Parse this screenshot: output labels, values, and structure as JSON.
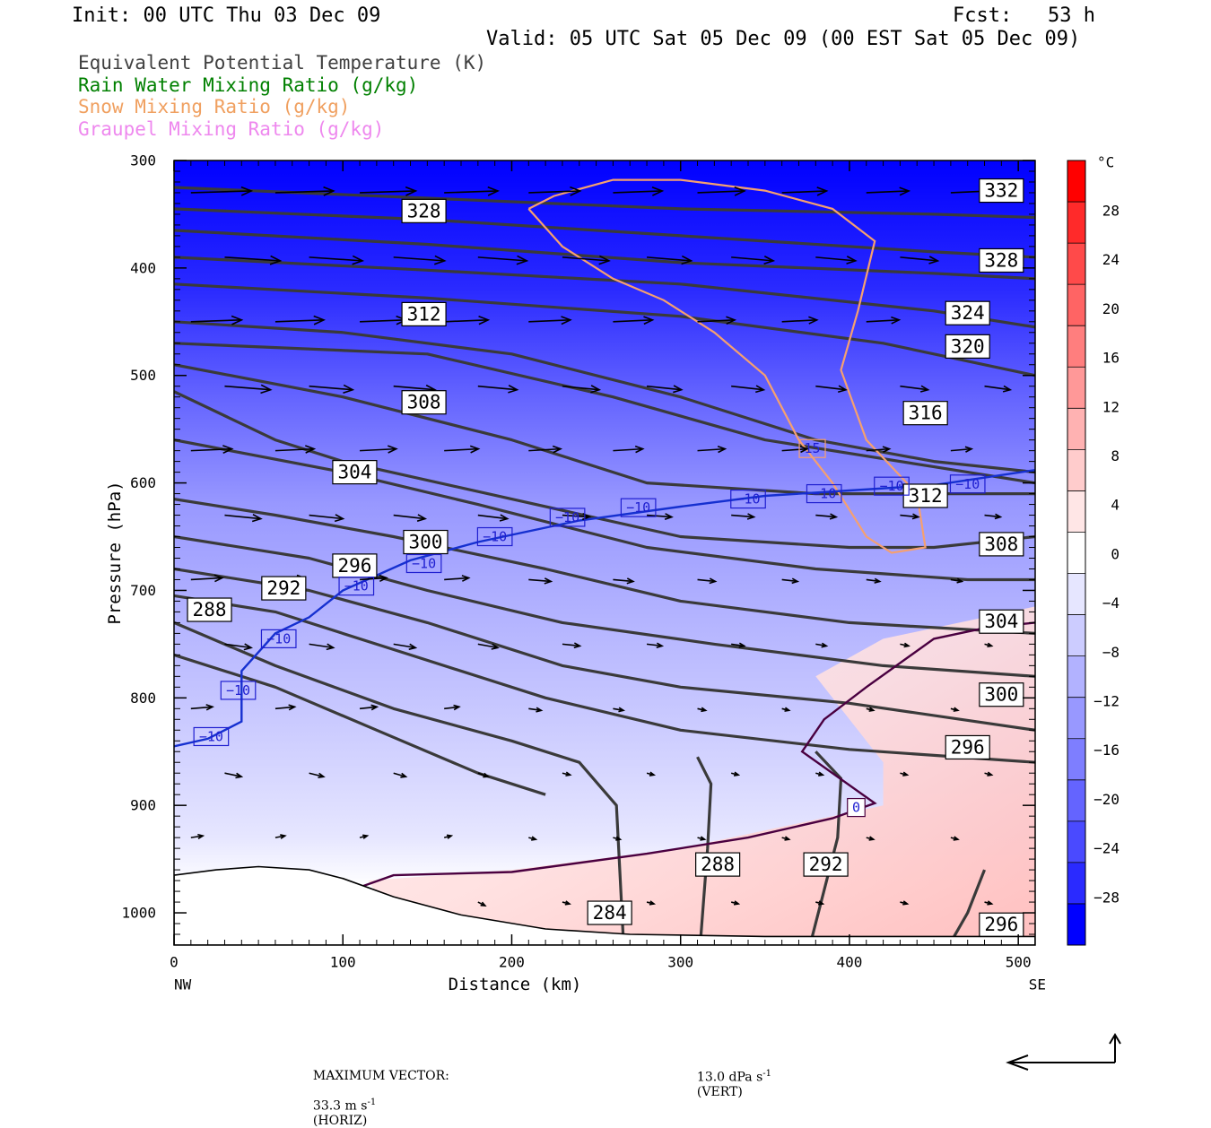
{
  "header": {
    "init": "Init: 00 UTC Thu 03 Dec 09",
    "fcst": "Fcst:   53 h",
    "valid": "Valid: 05 UTC Sat 05 Dec 09 (00 EST Sat 05 Dec 09)"
  },
  "legend": [
    {
      "label": "Equivalent Potential Temperature (K)",
      "color": "#404040"
    },
    {
      "label": "Rain Water Mixing Ratio (g/kg)",
      "color": "#008000"
    },
    {
      "label": "Snow Mixing Ratio (g/kg)",
      "color": "#f0a060"
    },
    {
      "label": "Graupel Mixing Ratio (g/kg)",
      "color": "#ee88ee"
    }
  ],
  "footer": {
    "max_vector_label": "MAXIMUM VECTOR:",
    "horiz_value": "33.3 m s",
    "horiz_unit": "(HORIZ)",
    "vert_value": "13.0 dPa s",
    "vert_unit": "(VERT)",
    "exponent": "-1"
  },
  "colorbar": {
    "unit": "°C",
    "labels": [
      "28",
      "24",
      "20",
      "16",
      "12",
      "8",
      "4",
      "0",
      "−4",
      "−8",
      "−12",
      "−16",
      "−20",
      "−24",
      "−28"
    ],
    "label_values": [
      28,
      24,
      20,
      16,
      12,
      8,
      4,
      0,
      -4,
      -8,
      -12,
      -16,
      -20,
      -24,
      -28
    ],
    "colors": [
      "#ff0000",
      "#ff2a2a",
      "#ff4a4a",
      "#ff6464",
      "#ff7e7e",
      "#ff9898",
      "#ffb2b2",
      "#ffcccc",
      "#ffe6e6",
      "#ffffff",
      "#e6e6ff",
      "#ccccff",
      "#b2b2ff",
      "#9898ff",
      "#7e7eff",
      "#6464ff",
      "#4a4aff",
      "#2a2aff",
      "#0000ff"
    ]
  },
  "chart_data": {
    "type": "cross-section",
    "xlabel": "Distance (km)",
    "ylabel": "Pressure (hPa)",
    "x_ticks": [
      0,
      100,
      200,
      300,
      400,
      500
    ],
    "x_tick_labels": [
      "0",
      "100",
      "200",
      "300",
      "400",
      "500"
    ],
    "x_end_labels": {
      "left": "NW",
      "right": "SE"
    },
    "xlim": [
      0,
      510
    ],
    "y_ticks": [
      300,
      400,
      500,
      600,
      700,
      800,
      900,
      1000
    ],
    "y_tick_labels": [
      "300",
      "400",
      "500",
      "600",
      "700",
      "800",
      "900",
      "1000"
    ],
    "ylim": [
      1030,
      300
    ],
    "y_scale": "linear",
    "shading": {
      "field": "Temperature (°C)",
      "stops": [
        {
          "p": 300,
          "c": "#0000ff"
        },
        {
          "p": 420,
          "c": "#2a2aff"
        },
        {
          "p": 520,
          "c": "#6464ff"
        },
        {
          "p": 620,
          "c": "#9898ff"
        },
        {
          "p": 720,
          "c": "#b2b2ff"
        },
        {
          "p": 830,
          "c": "#ccccff"
        },
        {
          "p": 930,
          "c": "#e6e6ff"
        },
        {
          "p": 975,
          "c": "#ffffff"
        }
      ]
    },
    "warm_region": [
      [
        115,
        970
      ],
      [
        200,
        960
      ],
      [
        300,
        940
      ],
      [
        420,
        900
      ],
      [
        420,
        860
      ],
      [
        380,
        780
      ],
      [
        420,
        745
      ],
      [
        510,
        715
      ],
      [
        510,
        1030
      ],
      [
        140,
        1030
      ]
    ],
    "terrain": [
      [
        0,
        1030
      ],
      [
        0,
        965
      ],
      [
        25,
        960
      ],
      [
        50,
        957
      ],
      [
        80,
        960
      ],
      [
        100,
        968
      ],
      [
        130,
        985
      ],
      [
        170,
        1002
      ],
      [
        220,
        1015
      ],
      [
        270,
        1020
      ],
      [
        350,
        1022
      ],
      [
        430,
        1022
      ],
      [
        510,
        1022
      ],
      [
        510,
        1030
      ]
    ],
    "theta_e_contours": [
      {
        "label": "332",
        "label_at": [
          490,
          328
        ],
        "points": [
          [
            0,
            325
          ],
          [
            150,
            335
          ],
          [
            300,
            345
          ],
          [
            450,
            350
          ],
          [
            510,
            353
          ]
        ]
      },
      {
        "label": "328",
        "label_at": [
          148,
          347
        ],
        "points": [
          [
            0,
            345
          ],
          [
            150,
            355
          ],
          [
            300,
            370
          ],
          [
            450,
            385
          ],
          [
            510,
            390
          ]
        ]
      },
      {
        "label": "328",
        "label_at": [
          490,
          393
        ],
        "points": [
          [
            0,
            365
          ],
          [
            150,
            378
          ],
          [
            300,
            395
          ],
          [
            450,
            405
          ],
          [
            510,
            410
          ]
        ]
      },
      {
        "label": "324",
        "label_at": [
          470,
          442
        ],
        "points": [
          [
            0,
            390
          ],
          [
            150,
            402
          ],
          [
            300,
            415
          ],
          [
            450,
            440
          ],
          [
            510,
            455
          ]
        ]
      },
      {
        "label": "320",
        "label_at": [
          470,
          473
        ],
        "points": [
          [
            0,
            415
          ],
          [
            150,
            428
          ],
          [
            300,
            445
          ],
          [
            420,
            470
          ],
          [
            510,
            500
          ]
        ]
      },
      {
        "label": "312",
        "label_at": [
          148,
          443
        ],
        "points": [
          [
            0,
            450
          ],
          [
            100,
            460
          ],
          [
            200,
            480
          ],
          [
            300,
            520
          ],
          [
            380,
            560
          ],
          [
            450,
            580
          ],
          [
            510,
            590
          ]
        ]
      },
      {
        "label": "316",
        "label_at": [
          445,
          535
        ],
        "points": [
          [
            0,
            470
          ],
          [
            150,
            480
          ],
          [
            260,
            520
          ],
          [
            350,
            560
          ],
          [
            450,
            585
          ],
          [
            510,
            600
          ]
        ]
      },
      {
        "label": "312",
        "label_at": [
          445,
          612
        ],
        "points": [
          [
            0,
            490
          ],
          [
            100,
            520
          ],
          [
            200,
            560
          ],
          [
            280,
            600
          ],
          [
            380,
            610
          ],
          [
            450,
            610
          ],
          [
            510,
            610
          ]
        ]
      },
      {
        "label": "308",
        "label_at": [
          148,
          525
        ],
        "points": [
          [
            0,
            515
          ],
          [
            60,
            560
          ],
          [
            100,
            580
          ],
          [
            200,
            615
          ],
          [
            300,
            650
          ],
          [
            400,
            660
          ],
          [
            450,
            660
          ],
          [
            510,
            650
          ]
        ]
      },
      {
        "label": "308",
        "label_at": [
          490,
          657
        ],
        "points": [
          [
            0,
            560
          ],
          [
            100,
            590
          ],
          [
            180,
            620
          ],
          [
            280,
            660
          ],
          [
            380,
            680
          ],
          [
            470,
            690
          ],
          [
            510,
            690
          ]
        ]
      },
      {
        "label": "304",
        "label_at": [
          107,
          590
        ],
        "points": [
          [
            0,
            615
          ],
          [
            60,
            630
          ],
          [
            130,
            650
          ],
          [
            220,
            680
          ],
          [
            300,
            710
          ],
          [
            400,
            730
          ],
          [
            510,
            740
          ]
        ]
      },
      {
        "label": "304",
        "label_at": [
          490,
          729
        ],
        "points": [
          [
            0,
            650
          ],
          [
            80,
            670
          ],
          [
            150,
            700
          ],
          [
            230,
            730
          ],
          [
            320,
            750
          ],
          [
            420,
            770
          ],
          [
            510,
            780
          ]
        ]
      },
      {
        "label": "300",
        "label_at": [
          149,
          655
        ],
        "points": [
          [
            0,
            680
          ],
          [
            80,
            700
          ],
          [
            150,
            730
          ],
          [
            230,
            770
          ],
          [
            300,
            790
          ],
          [
            400,
            805
          ],
          [
            510,
            830
          ]
        ]
      },
      {
        "label": "300",
        "label_at": [
          490,
          797
        ],
        "points": [
          [
            0,
            705
          ],
          [
            60,
            720
          ],
          [
            140,
            760
          ],
          [
            220,
            800
          ],
          [
            300,
            830
          ],
          [
            400,
            848
          ],
          [
            510,
            860
          ]
        ]
      },
      {
        "label": "296",
        "label_at": [
          107,
          677
        ],
        "points": [
          [
            0,
            730
          ],
          [
            60,
            770
          ],
          [
            130,
            810
          ],
          [
            200,
            840
          ],
          [
            240,
            860
          ],
          [
            262,
            900
          ],
          [
            264,
            960
          ],
          [
            266,
            1022
          ]
        ]
      },
      {
        "label": "296",
        "label_at": [
          470,
          846
        ],
        "points": [
          [
            0,
            760
          ],
          [
            60,
            790
          ],
          [
            120,
            830
          ],
          [
            180,
            870
          ],
          [
            220,
            890
          ]
        ]
      },
      {
        "label": "292",
        "label_at": [
          65,
          698
        ],
        "points": [
          [
            310,
            855
          ],
          [
            318,
            880
          ],
          [
            316,
            940
          ],
          [
            312,
            1022
          ]
        ]
      },
      {
        "label": "288",
        "label_at": [
          21,
          718
        ],
        "points": [
          [
            380,
            850
          ],
          [
            395,
            875
          ],
          [
            393,
            930
          ],
          [
            378,
            1022
          ]
        ]
      },
      {
        "label": "296",
        "label_at": [
          490,
          1011
        ],
        "points": [
          [
            480,
            960
          ],
          [
            470,
            1000
          ],
          [
            462,
            1022
          ]
        ]
      }
    ],
    "theta_e_low_labels": [
      {
        "label": "284",
        "label_at": [
          258,
          1000
        ]
      },
      {
        "label": "288",
        "label_at": [
          322,
          955
        ]
      },
      {
        "label": "292",
        "label_at": [
          386,
          955
        ]
      }
    ],
    "temp_minus10": {
      "points": [
        [
          0,
          845
        ],
        [
          20,
          838
        ],
        [
          40,
          822
        ],
        [
          40,
          775
        ],
        [
          60,
          740
        ],
        [
          80,
          725
        ],
        [
          100,
          700
        ],
        [
          140,
          672
        ],
        [
          180,
          655
        ],
        [
          240,
          635
        ],
        [
          300,
          622
        ],
        [
          350,
          612
        ],
        [
          400,
          607
        ],
        [
          450,
          602
        ],
        [
          510,
          588
        ]
      ],
      "labels": [
        {
          "label": "−10",
          "label_at": [
            22,
            836
          ]
        },
        {
          "label": "−10",
          "label_at": [
            38,
            793
          ]
        },
        {
          "label": "−10",
          "label_at": [
            62,
            745
          ]
        },
        {
          "label": "−10",
          "label_at": [
            108,
            696
          ]
        },
        {
          "label": "−10",
          "label_at": [
            148,
            675
          ]
        },
        {
          "label": "−10",
          "label_at": [
            190,
            650
          ]
        },
        {
          "label": "−10",
          "label_at": [
            233,
            632
          ]
        },
        {
          "label": "−10",
          "label_at": [
            275,
            623
          ]
        },
        {
          "label": "−10",
          "label_at": [
            340,
            615
          ]
        },
        {
          "label": "−10",
          "label_at": [
            385,
            610
          ]
        },
        {
          "label": "−10",
          "label_at": [
            425,
            603
          ]
        },
        {
          "label": "−10",
          "label_at": [
            470,
            601
          ]
        }
      ]
    },
    "temp_zero": {
      "points": [
        [
          112,
          975
        ],
        [
          130,
          965
        ],
        [
          200,
          962
        ],
        [
          280,
          945
        ],
        [
          340,
          930
        ],
        [
          390,
          912
        ],
        [
          415,
          898
        ],
        [
          372,
          850
        ],
        [
          385,
          820
        ],
        [
          410,
          790
        ],
        [
          450,
          745
        ],
        [
          480,
          735
        ],
        [
          510,
          730
        ]
      ],
      "labels": [
        {
          "label": "0",
          "label_at": [
            404,
            902
          ]
        }
      ]
    },
    "snow_contour": {
      "points": [
        [
          210,
          345
        ],
        [
          225,
          333
        ],
        [
          260,
          318
        ],
        [
          300,
          318
        ],
        [
          350,
          328
        ],
        [
          390,
          345
        ],
        [
          415,
          375
        ],
        [
          405,
          440
        ],
        [
          395,
          495
        ],
        [
          410,
          560
        ],
        [
          440,
          610
        ],
        [
          445,
          660
        ],
        [
          425,
          665
        ],
        [
          410,
          650
        ],
        [
          390,
          600
        ],
        [
          370,
          560
        ],
        [
          350,
          500
        ],
        [
          320,
          460
        ],
        [
          290,
          430
        ],
        [
          260,
          410
        ],
        [
          230,
          380
        ],
        [
          210,
          345
        ]
      ],
      "labels": [
        {
          "label": "15",
          "label_at": [
            378,
            568
          ]
        }
      ]
    },
    "wind_vectors_note": "Wind vectors shown as arrows (horizontal and vertical circulation)"
  }
}
